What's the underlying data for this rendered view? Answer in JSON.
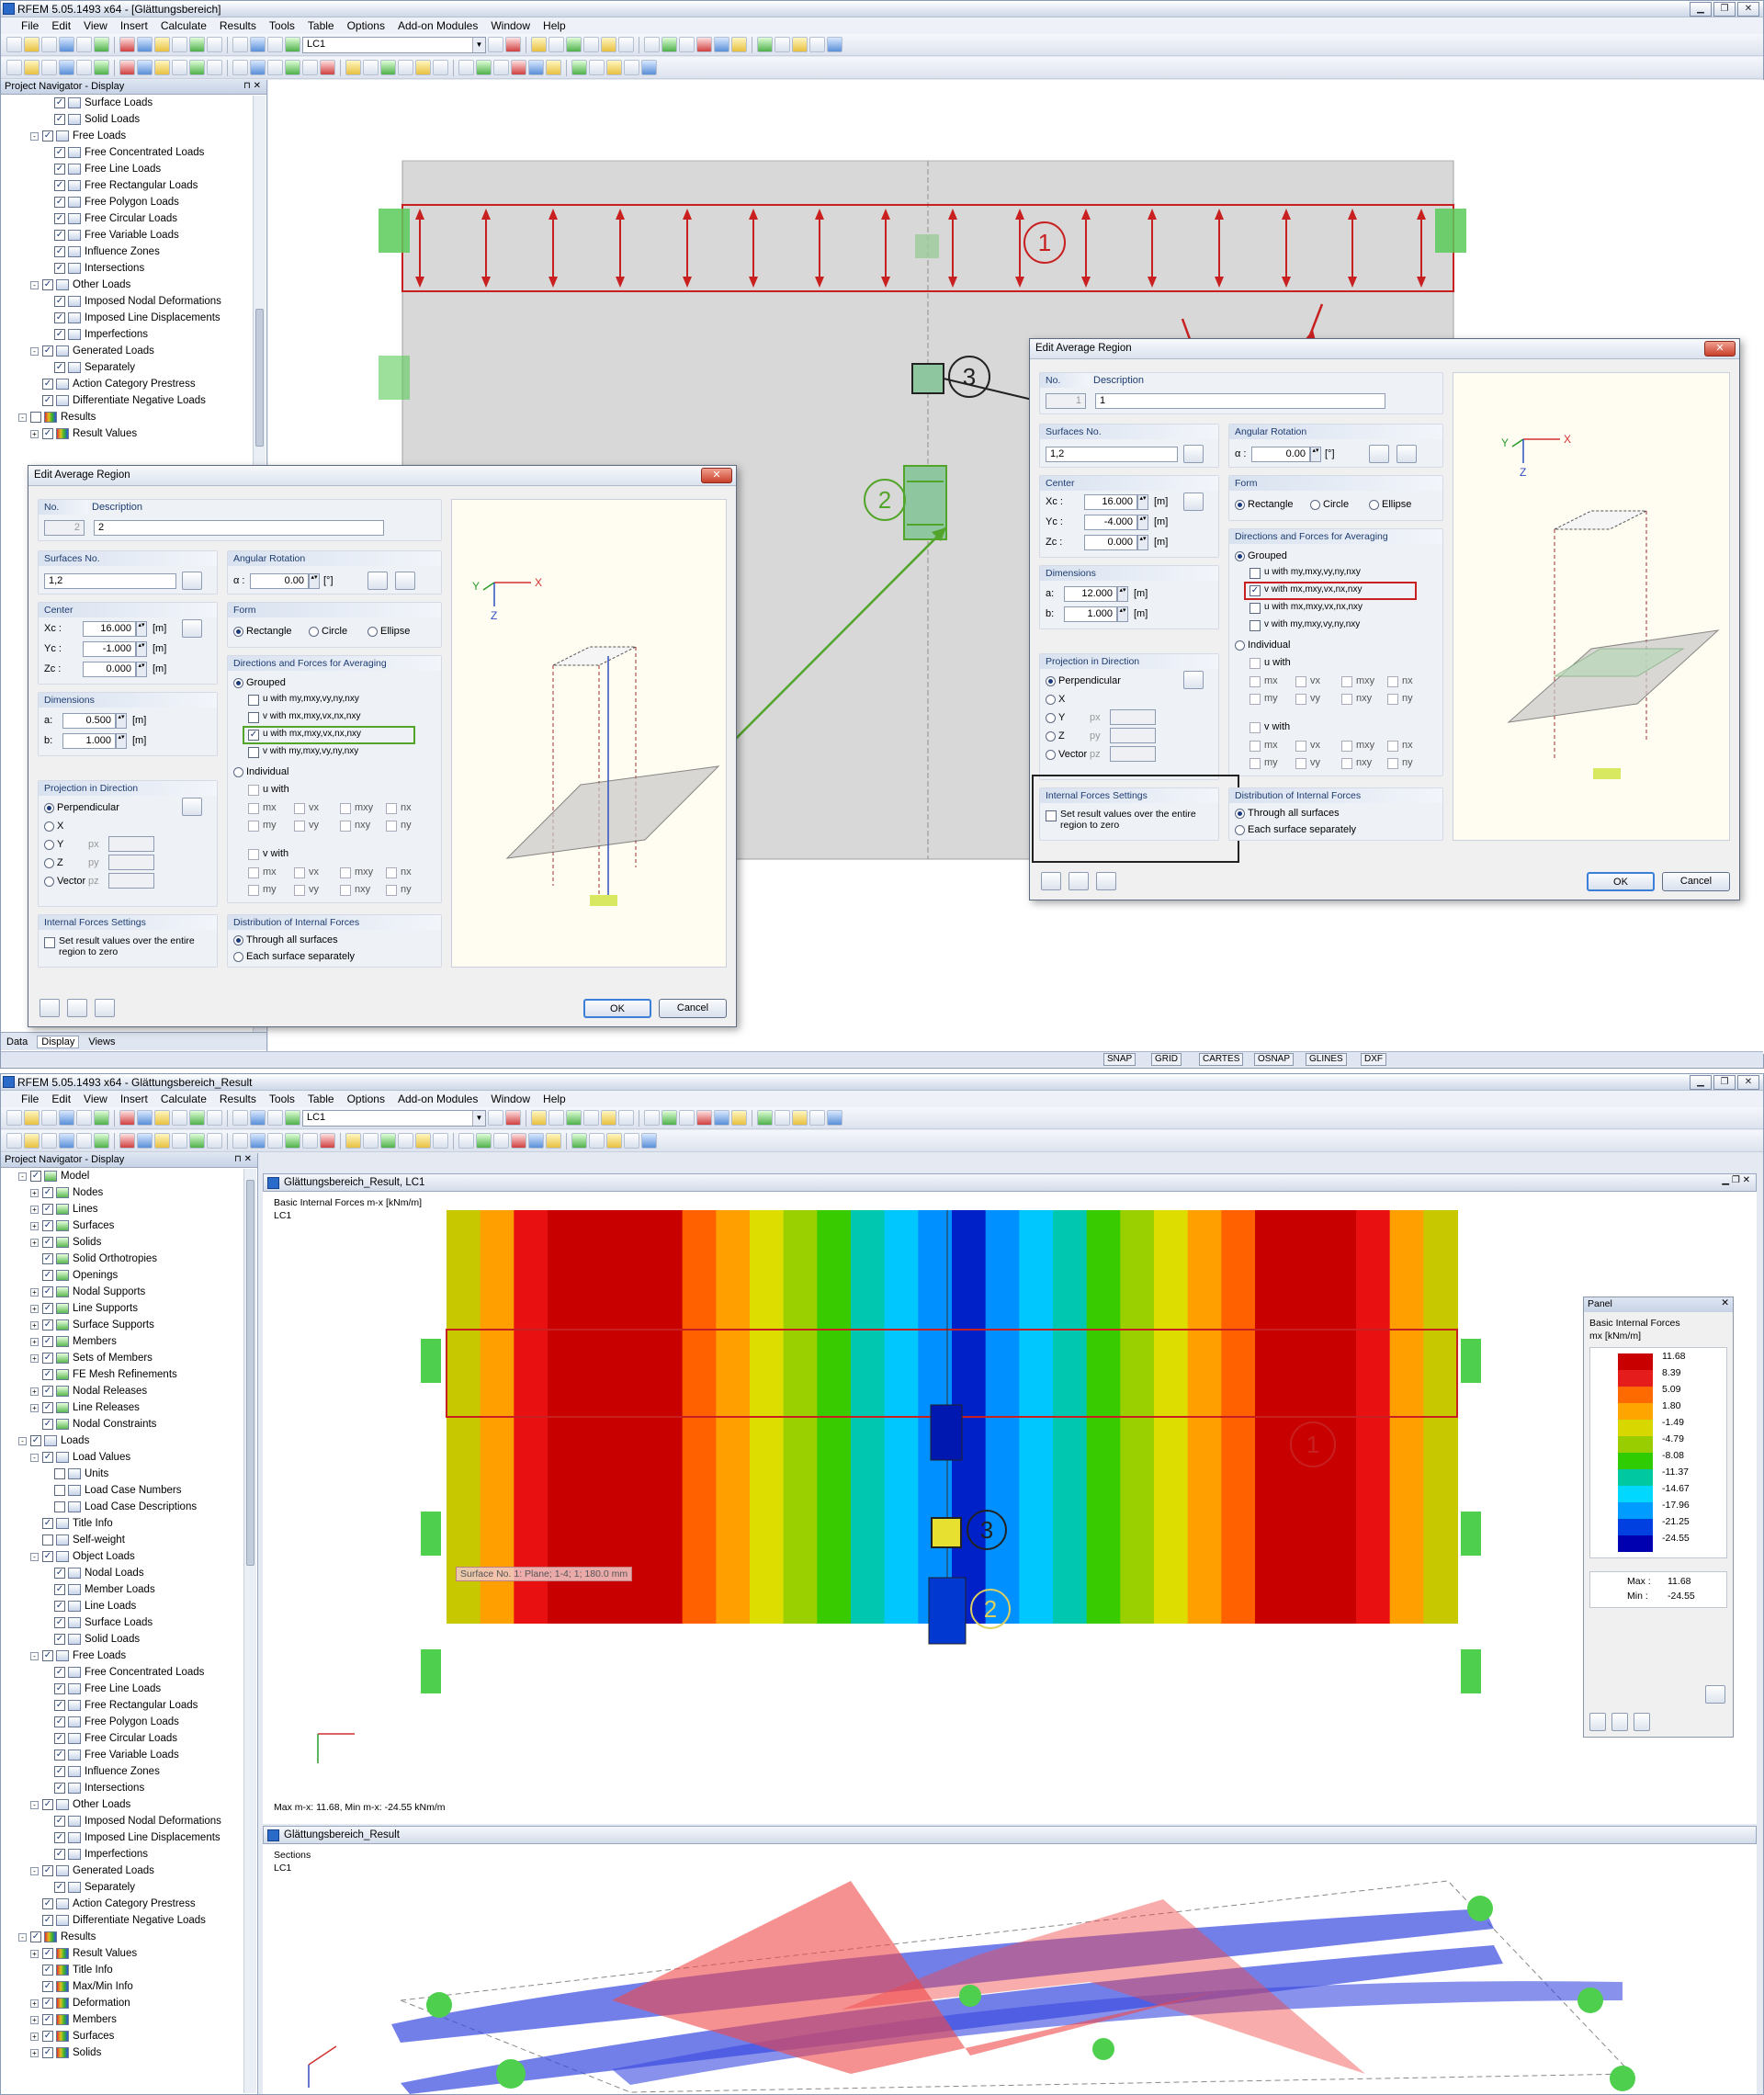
{
  "win1": {
    "title": "RFEM 5.05.1493 x64 - [Glättungsbereich]",
    "menu": [
      "File",
      "Edit",
      "View",
      "Insert",
      "Calculate",
      "Results",
      "Tools",
      "Table",
      "Options",
      "Add-on Modules",
      "Window",
      "Help"
    ],
    "lc_combo": "LC1",
    "nav_title": "Project Navigator - Display",
    "tree": [
      {
        "d": 3,
        "l": "Surface Loads",
        "c": "✓",
        "e": ""
      },
      {
        "d": 3,
        "l": "Solid Loads",
        "c": "✓",
        "e": ""
      },
      {
        "d": 2,
        "l": "Free Loads",
        "c": "✓",
        "e": "-"
      },
      {
        "d": 3,
        "l": "Free Concentrated Loads",
        "c": "✓",
        "e": ""
      },
      {
        "d": 3,
        "l": "Free Line Loads",
        "c": "✓",
        "e": ""
      },
      {
        "d": 3,
        "l": "Free Rectangular Loads",
        "c": "✓",
        "e": ""
      },
      {
        "d": 3,
        "l": "Free Polygon Loads",
        "c": "✓",
        "e": ""
      },
      {
        "d": 3,
        "l": "Free Circular Loads",
        "c": "✓",
        "e": ""
      },
      {
        "d": 3,
        "l": "Free Variable Loads",
        "c": "✓",
        "e": ""
      },
      {
        "d": 3,
        "l": "Influence Zones",
        "c": "✓",
        "e": ""
      },
      {
        "d": 3,
        "l": "Intersections",
        "c": "✓",
        "e": ""
      },
      {
        "d": 2,
        "l": "Other Loads",
        "c": "✓",
        "e": "-"
      },
      {
        "d": 3,
        "l": "Imposed Nodal Deformations",
        "c": "✓",
        "e": ""
      },
      {
        "d": 3,
        "l": "Imposed Line Displacements",
        "c": "✓",
        "e": ""
      },
      {
        "d": 3,
        "l": "Imperfections",
        "c": "✓",
        "e": ""
      },
      {
        "d": 2,
        "l": "Generated Loads",
        "c": "✓",
        "e": "-"
      },
      {
        "d": 3,
        "l": "Separately",
        "c": "✓",
        "e": ""
      },
      {
        "d": 2,
        "l": "Action Category Prestress",
        "c": "✓",
        "e": ""
      },
      {
        "d": 2,
        "l": "Differentiate Negative Loads",
        "c": "✓",
        "e": ""
      },
      {
        "d": 1,
        "l": "Results",
        "c": "",
        "e": "-",
        "i": "rs"
      },
      {
        "d": 2,
        "l": "Result Values",
        "c": "✓",
        "e": "+",
        "i": "rs"
      }
    ],
    "navtabs": [
      "Data",
      "Display",
      "Views"
    ],
    "status": [
      "SNAP",
      "GRID",
      "CARTES",
      "OSNAP",
      "GLINES",
      "DXF"
    ]
  },
  "dlgA": {
    "title": "Edit Average Region",
    "no_label": "No.",
    "no": "2",
    "desc_label": "Description",
    "desc": "2",
    "surf_group": "Surfaces No.",
    "surf": "1,2",
    "rot_group": "Angular Rotation",
    "alpha_label": "α :",
    "alpha": "0.00",
    "alpha_unit": "[°]",
    "center_group": "Center",
    "xc_label": "Xc :",
    "xc": "16.000",
    "yc_label": "Yc :",
    "yc": "-1.000",
    "zc_label": "Zc :",
    "zc": "0.000",
    "unit_m": "[m]",
    "form_group": "Form",
    "form": [
      "Rectangle",
      "Circle",
      "Ellipse"
    ],
    "dir_group": "Directions and Forces for Averaging",
    "grouped": "Grouped",
    "opts": [
      "u with my,mxy,vy,ny,nxy",
      "v with mx,mxy,vx,nx,nxy",
      "u with mx,mxy,vx,nx,nxy",
      "v with my,mxy,vy,ny,nxy"
    ],
    "individual": "Individual",
    "u_with": "u with",
    "v_with": "v with",
    "ind_row1": [
      "mx",
      "vx",
      "mxy",
      "nx"
    ],
    "ind_row2": [
      "my",
      "vy",
      "nxy",
      "ny"
    ],
    "dim_group": "Dimensions",
    "a_label": "a:",
    "a": "0.500",
    "b_label": "b:",
    "b": "1.000",
    "proj_group": "Projection in Direction",
    "proj": [
      "Perpendicular",
      "X",
      "Y",
      "Z",
      "Vector"
    ],
    "px": "px",
    "py": "py",
    "pz": "pz",
    "ifs_group": "Internal Forces Settings",
    "ifs": "Set result values over the entire region to zero",
    "dist_group": "Distribution of Internal Forces",
    "dist": [
      "Through all surfaces",
      "Each surface separately"
    ],
    "ok": "OK",
    "cancel": "Cancel"
  },
  "dlgB": {
    "title": "Edit Average Region",
    "no": "1",
    "desc": "1",
    "surf": "1,2",
    "alpha": "0.00",
    "xc": "16.000",
    "yc": "-4.000",
    "zc": "0.000",
    "a": "12.000",
    "b": "1.000",
    "opts": [
      "u with my,mxy,vy,ny,nxy",
      "v with mx,mxy,vx,nx,nxy",
      "u with mx,mxy,vx,nx,nxy",
      "v with my,mxy,vy,ny,nxy"
    ]
  },
  "callouts": [
    "1",
    "2",
    "3"
  ],
  "win2": {
    "title": "RFEM 5.05.1493 x64 - Glättungsbereich_Result",
    "lc_combo": "LC1",
    "tree": [
      {
        "d": 1,
        "l": "Model",
        "c": "✓",
        "e": "-",
        "i": "gr"
      },
      {
        "d": 2,
        "l": "Nodes",
        "c": "✓",
        "e": "+",
        "i": "gr"
      },
      {
        "d": 2,
        "l": "Lines",
        "c": "✓",
        "e": "+",
        "i": "gr"
      },
      {
        "d": 2,
        "l": "Surfaces",
        "c": "✓",
        "e": "+",
        "i": "gr"
      },
      {
        "d": 2,
        "l": "Solids",
        "c": "✓",
        "e": "+",
        "i": "gr"
      },
      {
        "d": 2,
        "l": "Solid Orthotropies",
        "c": "✓",
        "e": "",
        "i": "gr"
      },
      {
        "d": 2,
        "l": "Openings",
        "c": "✓",
        "e": "",
        "i": "gr"
      },
      {
        "d": 2,
        "l": "Nodal Supports",
        "c": "✓",
        "e": "+",
        "i": "gr"
      },
      {
        "d": 2,
        "l": "Line Supports",
        "c": "✓",
        "e": "+",
        "i": "gr"
      },
      {
        "d": 2,
        "l": "Surface Supports",
        "c": "✓",
        "e": "+",
        "i": "gr"
      },
      {
        "d": 2,
        "l": "Members",
        "c": "✓",
        "e": "+",
        "i": "gr"
      },
      {
        "d": 2,
        "l": "Sets of Members",
        "c": "✓",
        "e": "+",
        "i": "gr"
      },
      {
        "d": 2,
        "l": "FE Mesh Refinements",
        "c": "✓",
        "e": "",
        "i": "gr"
      },
      {
        "d": 2,
        "l": "Nodal Releases",
        "c": "✓",
        "e": "+",
        "i": "gr"
      },
      {
        "d": 2,
        "l": "Line Releases",
        "c": "✓",
        "e": "+",
        "i": "gr"
      },
      {
        "d": 2,
        "l": "Nodal Constraints",
        "c": "✓",
        "e": "",
        "i": "gr"
      },
      {
        "d": 1,
        "l": "Loads",
        "c": "✓",
        "e": "-"
      },
      {
        "d": 2,
        "l": "Load Values",
        "c": "✓",
        "e": "-"
      },
      {
        "d": 3,
        "l": "Units",
        "c": "",
        "e": ""
      },
      {
        "d": 3,
        "l": "Load Case Numbers",
        "c": "",
        "e": ""
      },
      {
        "d": 3,
        "l": "Load Case Descriptions",
        "c": "",
        "e": ""
      },
      {
        "d": 2,
        "l": "Title Info",
        "c": "✓",
        "e": ""
      },
      {
        "d": 2,
        "l": "Self-weight",
        "c": "",
        "e": ""
      },
      {
        "d": 2,
        "l": "Object Loads",
        "c": "✓",
        "e": "-"
      },
      {
        "d": 3,
        "l": "Nodal Loads",
        "c": "✓",
        "e": ""
      },
      {
        "d": 3,
        "l": "Member Loads",
        "c": "✓",
        "e": ""
      },
      {
        "d": 3,
        "l": "Line Loads",
        "c": "✓",
        "e": ""
      },
      {
        "d": 3,
        "l": "Surface Loads",
        "c": "✓",
        "e": ""
      },
      {
        "d": 3,
        "l": "Solid Loads",
        "c": "✓",
        "e": ""
      },
      {
        "d": 2,
        "l": "Free Loads",
        "c": "✓",
        "e": "-"
      },
      {
        "d": 3,
        "l": "Free Concentrated Loads",
        "c": "✓",
        "e": ""
      },
      {
        "d": 3,
        "l": "Free Line Loads",
        "c": "✓",
        "e": ""
      },
      {
        "d": 3,
        "l": "Free Rectangular Loads",
        "c": "✓",
        "e": ""
      },
      {
        "d": 3,
        "l": "Free Polygon Loads",
        "c": "✓",
        "e": ""
      },
      {
        "d": 3,
        "l": "Free Circular Loads",
        "c": "✓",
        "e": ""
      },
      {
        "d": 3,
        "l": "Free Variable Loads",
        "c": "✓",
        "e": ""
      },
      {
        "d": 3,
        "l": "Influence Zones",
        "c": "✓",
        "e": ""
      },
      {
        "d": 3,
        "l": "Intersections",
        "c": "✓",
        "e": ""
      },
      {
        "d": 2,
        "l": "Other Loads",
        "c": "✓",
        "e": "-"
      },
      {
        "d": 3,
        "l": "Imposed Nodal Deformations",
        "c": "✓",
        "e": ""
      },
      {
        "d": 3,
        "l": "Imposed Line Displacements",
        "c": "✓",
        "e": ""
      },
      {
        "d": 3,
        "l": "Imperfections",
        "c": "✓",
        "e": ""
      },
      {
        "d": 2,
        "l": "Generated Loads",
        "c": "✓",
        "e": "-"
      },
      {
        "d": 3,
        "l": "Separately",
        "c": "✓",
        "e": ""
      },
      {
        "d": 2,
        "l": "Action Category Prestress",
        "c": "✓",
        "e": ""
      },
      {
        "d": 2,
        "l": "Differentiate Negative Loads",
        "c": "✓",
        "e": ""
      },
      {
        "d": 1,
        "l": "Results",
        "c": "✓",
        "e": "-",
        "i": "rs"
      },
      {
        "d": 2,
        "l": "Result Values",
        "c": "✓",
        "e": "+",
        "i": "rs"
      },
      {
        "d": 2,
        "l": "Title Info",
        "c": "✓",
        "e": "",
        "i": "rs"
      },
      {
        "d": 2,
        "l": "Max/Min Info",
        "c": "✓",
        "e": "",
        "i": "rs"
      },
      {
        "d": 2,
        "l": "Deformation",
        "c": "✓",
        "e": "+",
        "i": "rs"
      },
      {
        "d": 2,
        "l": "Members",
        "c": "✓",
        "e": "+",
        "i": "rs"
      },
      {
        "d": 2,
        "l": "Surfaces",
        "c": "✓",
        "e": "+",
        "i": "rs"
      },
      {
        "d": 2,
        "l": "Solids",
        "c": "✓",
        "e": "+",
        "i": "rs"
      }
    ],
    "view1_title": "Glättungsbereich_Result, LC1",
    "view1_line1": "Basic Internal Forces m-x [kNm/m]",
    "view1_line2": "LC1",
    "tooltip": "Surface No. 1: Plane; 1-4; 1; 180.0 mm",
    "maxmin": "Max m-x: 11.68, Min m-x: -24.55 kNm/m",
    "view2_title": "Glättungsbereich_Result",
    "view2_line1": "Sections",
    "view2_line2": "LC1"
  },
  "panel": {
    "title": "Panel",
    "heading": "Basic Internal Forces",
    "unit": "mx [kNm/m]",
    "legend": [
      {
        "v": "11.68",
        "c": "#c80000"
      },
      {
        "v": "8.39",
        "c": "#e41c1c"
      },
      {
        "v": "5.09",
        "c": "#ff6a00"
      },
      {
        "v": "1.80",
        "c": "#ffa500"
      },
      {
        "v": "-1.49",
        "c": "#d8d800"
      },
      {
        "v": "-4.79",
        "c": "#9acd00"
      },
      {
        "v": "-8.08",
        "c": "#2ecc00"
      },
      {
        "v": "-11.37",
        "c": "#00c8a0"
      },
      {
        "v": "-14.67",
        "c": "#00d8ff"
      },
      {
        "v": "-17.96",
        "c": "#009cff"
      },
      {
        "v": "-21.25",
        "c": "#0040e0"
      },
      {
        "v": "-24.55",
        "c": "#0000b0"
      }
    ],
    "max_label": "Max :",
    "max": "11.68",
    "min_label": "Min :",
    "min": "-24.55"
  },
  "contour_colors": [
    "#c8c800",
    "#ffa000",
    "#e81010",
    "#c80000",
    "#c80000",
    "#c80000",
    "#c80000",
    "#ff6000",
    "#ffa000",
    "#dddd00",
    "#9ad000",
    "#38cc00",
    "#00c8b0",
    "#00c8ff",
    "#0090ff",
    "#0020c8",
    "#0090ff",
    "#00c8ff",
    "#00c8b0",
    "#38cc00",
    "#9ad000",
    "#dddd00",
    "#ffa000",
    "#ff6000",
    "#c80000",
    "#c80000",
    "#c80000",
    "#e81010",
    "#ffa000",
    "#c8c800"
  ],
  "colors": {
    "accent_red": "#c82020",
    "accent_green": "#52a52a",
    "blue_section": "#3848e0",
    "red_section": "#f04848"
  }
}
